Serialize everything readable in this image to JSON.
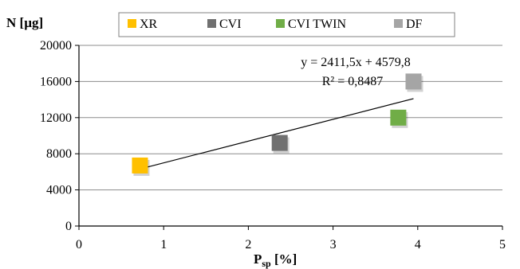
{
  "chart_data": {
    "type": "scatter",
    "xlabel_main": "P",
    "xlabel_sub": "sp",
    "xlabel_unit": " [%]",
    "ylabel": "N [µg]",
    "xlim": [
      0,
      5
    ],
    "ylim": [
      0,
      20000
    ],
    "x_ticks": [
      "0",
      "1",
      "2",
      "3",
      "4",
      "5"
    ],
    "y_ticks": [
      "0",
      "4000",
      "8000",
      "12000",
      "16000",
      "20000"
    ],
    "grid": "horizontal",
    "legend_position": "top",
    "series": [
      {
        "name": "XR",
        "color": "#FFC000",
        "points": [
          [
            0.72,
            6700
          ]
        ]
      },
      {
        "name": "CVI",
        "color": "#707070",
        "points": [
          [
            2.37,
            9200
          ]
        ]
      },
      {
        "name": "CVI TWIN",
        "color": "#70AD47",
        "points": [
          [
            3.77,
            12000
          ]
        ]
      },
      {
        "name": "DF",
        "color": "#A5A5A5",
        "points": [
          [
            3.95,
            16000
          ]
        ]
      }
    ],
    "trendline": {
      "slope": 2411.5,
      "intercept": 4579.8,
      "x_range": [
        0.72,
        3.95
      ],
      "equation": "y = 2411,5x + 4579,8",
      "r_squared": "R² = 0,8487"
    }
  }
}
